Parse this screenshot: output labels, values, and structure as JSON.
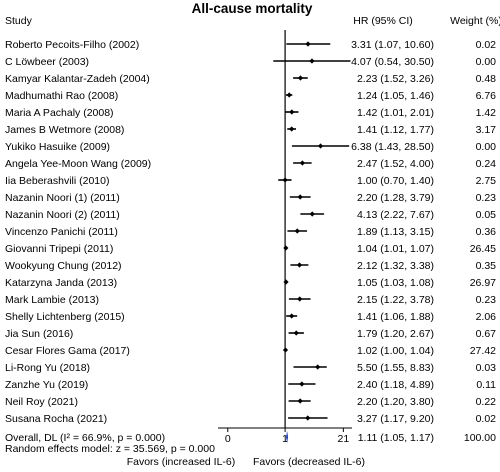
{
  "chart_data": {
    "type": "forest",
    "title": "All-cause mortality",
    "columns": {
      "study": "Study",
      "estimate": "HR (95% CI)",
      "weight": "Weight (%)"
    },
    "xaxis": {
      "ticks": [
        {
          "value": 0.05,
          "label": "0"
        },
        {
          "value": 1,
          "label": "1"
        },
        {
          "value": 21,
          "label": "21"
        }
      ],
      "range": [
        0.03,
        33
      ],
      "reference_line": 1,
      "left_label": "Favors (increased IL-6)",
      "right_label": "Favors (decreased IL-6)"
    },
    "studies": [
      {
        "name": "Roberto Pecoits-Filho (2002)",
        "hr": 3.31,
        "lo": 1.07,
        "hi": 10.6,
        "est_text": "3.31 (1.07, 10.60)",
        "weight_text": "0.02"
      },
      {
        "name": "C Löwbeer (2003)",
        "hr": 4.07,
        "lo": 0.54,
        "hi": 30.5,
        "est_text": "4.07 (0.54, 30.50)",
        "weight_text": "0.00"
      },
      {
        "name": "Kamyar Kalantar-Zadeh (2004)",
        "hr": 2.23,
        "lo": 1.52,
        "hi": 3.26,
        "est_text": "2.23 (1.52, 3.26)",
        "weight_text": "0.48"
      },
      {
        "name": "Madhumathi Rao (2008)",
        "hr": 1.24,
        "lo": 1.05,
        "hi": 1.46,
        "est_text": "1.24 (1.05, 1.46)",
        "weight_text": "6.76"
      },
      {
        "name": "Maria A Pachaly (2008)",
        "hr": 1.42,
        "lo": 1.01,
        "hi": 2.01,
        "est_text": "1.42 (1.01, 2.01)",
        "weight_text": "1.42"
      },
      {
        "name": "James B Wetmore (2008)",
        "hr": 1.41,
        "lo": 1.12,
        "hi": 1.77,
        "est_text": "1.41 (1.12, 1.77)",
        "weight_text": "3.17"
      },
      {
        "name": "Yukiko Hasuike (2009)",
        "hr": 6.38,
        "lo": 1.43,
        "hi": 28.5,
        "est_text": "6.38 (1.43, 28.50)",
        "weight_text": "0.00"
      },
      {
        "name": "Angela Yee-Moon Wang (2009)",
        "hr": 2.47,
        "lo": 1.52,
        "hi": 4.0,
        "est_text": "2.47 (1.52, 4.00)",
        "weight_text": "0.24"
      },
      {
        "name": "Iia Beberashvili (2010)",
        "hr": 1.0,
        "lo": 0.7,
        "hi": 1.4,
        "est_text": "1.00 (0.70, 1.40)",
        "weight_text": "2.75"
      },
      {
        "name": "Nazanin Noori (1) (2011)",
        "hr": 2.2,
        "lo": 1.28,
        "hi": 3.79,
        "est_text": "2.20 (1.28, 3.79)",
        "weight_text": "0.23"
      },
      {
        "name": "Nazanin Noori (2) (2011)",
        "hr": 4.13,
        "lo": 2.22,
        "hi": 7.67,
        "est_text": "4.13 (2.22, 7.67)",
        "weight_text": "0.05"
      },
      {
        "name": "Vincenzo Panichi (2011)",
        "hr": 1.89,
        "lo": 1.13,
        "hi": 3.15,
        "est_text": "1.89 (1.13, 3.15)",
        "weight_text": "0.36"
      },
      {
        "name": "Giovanni Tripepi (2011)",
        "hr": 1.04,
        "lo": 1.01,
        "hi": 1.07,
        "est_text": "1.04 (1.01, 1.07)",
        "weight_text": "26.45"
      },
      {
        "name": "Wookyung Chung (2012)",
        "hr": 2.12,
        "lo": 1.32,
        "hi": 3.38,
        "est_text": "2.12 (1.32, 3.38)",
        "weight_text": "0.35"
      },
      {
        "name": "Katarzyna Janda (2013)",
        "hr": 1.05,
        "lo": 1.03,
        "hi": 1.08,
        "est_text": "1.05 (1.03, 1.08)",
        "weight_text": "26.97"
      },
      {
        "name": "Mark Lambie (2013)",
        "hr": 2.15,
        "lo": 1.22,
        "hi": 3.78,
        "est_text": "2.15 (1.22, 3.78)",
        "weight_text": "0.23"
      },
      {
        "name": "Shelly Lichtenberg (2015)",
        "hr": 1.41,
        "lo": 1.06,
        "hi": 1.88,
        "est_text": "1.41 (1.06, 1.88)",
        "weight_text": "2.06"
      },
      {
        "name": "Jia Sun (2016)",
        "hr": 1.79,
        "lo": 1.2,
        "hi": 2.67,
        "est_text": "1.79 (1.20, 2.67)",
        "weight_text": "0.67"
      },
      {
        "name": "Cesar Flores Gama (2017)",
        "hr": 1.02,
        "lo": 1.0,
        "hi": 1.04,
        "est_text": "1.02 (1.00, 1.04)",
        "weight_text": "27.42"
      },
      {
        "name": "Li-Rong Yu (2018)",
        "hr": 5.5,
        "lo": 1.55,
        "hi": 8.83,
        "est_text": "5.50 (1.55, 8.83)",
        "weight_text": "0.03"
      },
      {
        "name": "Zanzhe Yu (2019)",
        "hr": 2.4,
        "lo": 1.18,
        "hi": 4.89,
        "est_text": "2.40 (1.18, 4.89)",
        "weight_text": "0.11"
      },
      {
        "name": "Neil Roy (2021)",
        "hr": 2.2,
        "lo": 1.2,
        "hi": 3.8,
        "est_text": "2.20 (1.20, 3.80)",
        "weight_text": "0.22"
      },
      {
        "name": "Susana Rocha (2021)",
        "hr": 3.27,
        "lo": 1.17,
        "hi": 9.2,
        "est_text": "3.27 (1.17, 9.20)",
        "weight_text": "0.02"
      }
    ],
    "overall": {
      "label": "Overall, DL (I² = 66.9%, p = 0.000)",
      "hr": 1.11,
      "lo": 1.05,
      "hi": 1.17,
      "est_text": "1.11 (1.05, 1.17)",
      "weight_text": "100.00",
      "note": "Random effects model: z = 35.569, p = 0.000"
    },
    "colors": {
      "marker": "#000000",
      "ci_line": "#000000",
      "pooled": "#1f3fb3"
    }
  }
}
